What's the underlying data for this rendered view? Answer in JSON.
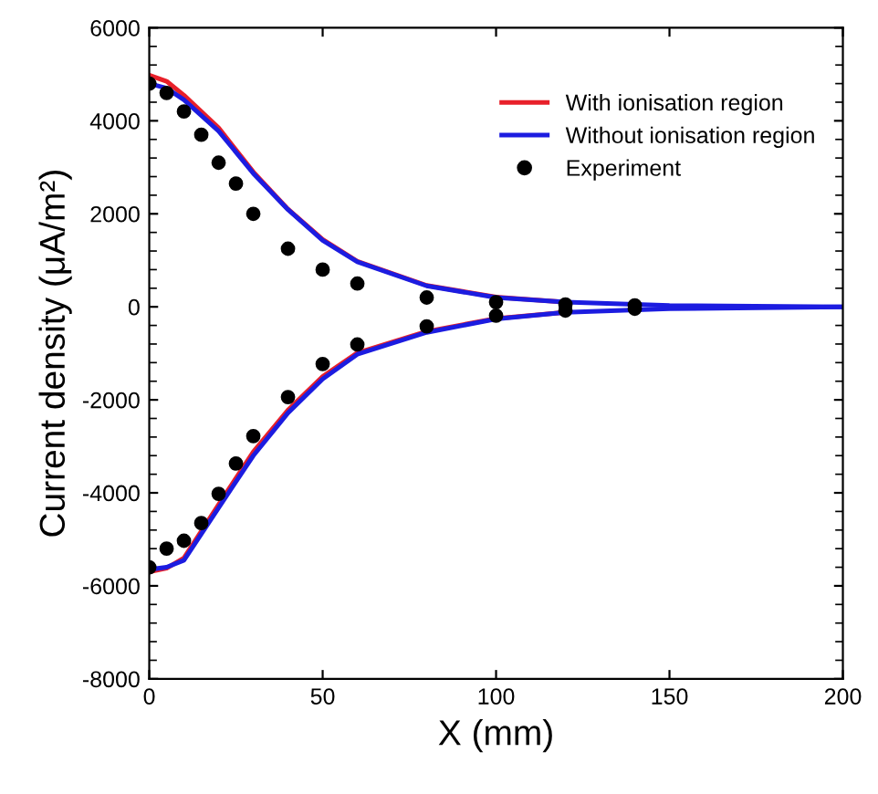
{
  "chart_data": {
    "type": "line",
    "xlabel": "X (mm)",
    "ylabel": "Current density (μA/m²)",
    "xlim": [
      0,
      200
    ],
    "ylim": [
      -8000,
      6000
    ],
    "xticks": [
      0,
      50,
      100,
      150,
      200
    ],
    "yticks": [
      -8000,
      -6000,
      -4000,
      -2000,
      0,
      2000,
      4000,
      6000
    ],
    "legend": "top right",
    "grid": false,
    "series": [
      {
        "name": "With ionisation region",
        "color": "#e8202a",
        "x": [
          0,
          5,
          10,
          20,
          30,
          40,
          50,
          60,
          80,
          100,
          120
        ],
        "values": [
          4980,
          4850,
          4550,
          3850,
          2900,
          2100,
          1450,
          980,
          460,
          210,
          100
        ]
      },
      {
        "name": "Without ionisation region",
        "color": "#1c1ce0",
        "x": [
          0,
          5,
          10,
          20,
          30,
          40,
          50,
          60,
          80,
          100,
          120,
          150,
          200
        ],
        "values": [
          4800,
          4700,
          4450,
          3780,
          2870,
          2090,
          1430,
          970,
          450,
          200,
          100,
          30,
          0
        ]
      },
      {
        "color": "#e8202a",
        "x": [
          0,
          5,
          10,
          20,
          30,
          40,
          50,
          60,
          80,
          100,
          120
        ],
        "values": [
          -5700,
          -5620,
          -5400,
          -4250,
          -3120,
          -2220,
          -1500,
          -990,
          -530,
          -250,
          -120
        ]
      },
      {
        "color": "#1c1ce0",
        "x": [
          0,
          5,
          10,
          20,
          30,
          40,
          50,
          60,
          80,
          100,
          120,
          150,
          200
        ],
        "values": [
          -5650,
          -5600,
          -5450,
          -4320,
          -3200,
          -2280,
          -1550,
          -1020,
          -550,
          -260,
          -120,
          -40,
          0
        ]
      },
      {
        "name": "Experiment",
        "type": "scatter",
        "color": "#000000",
        "marker": "circle",
        "x": [
          0,
          5,
          10,
          15,
          20,
          25,
          30,
          40,
          50,
          60,
          80,
          100,
          120,
          140,
          0,
          5,
          10,
          15,
          20,
          25,
          30,
          40,
          50,
          60,
          80,
          100,
          120,
          140
        ],
        "values": [
          4800,
          4600,
          4200,
          3700,
          3100,
          2650,
          2000,
          1250,
          800,
          500,
          200,
          100,
          50,
          30,
          -5600,
          -5200,
          -5030,
          -4650,
          -4020,
          -3370,
          -2780,
          -1940,
          -1230,
          -810,
          -420,
          -190,
          -80,
          -40
        ]
      }
    ]
  }
}
